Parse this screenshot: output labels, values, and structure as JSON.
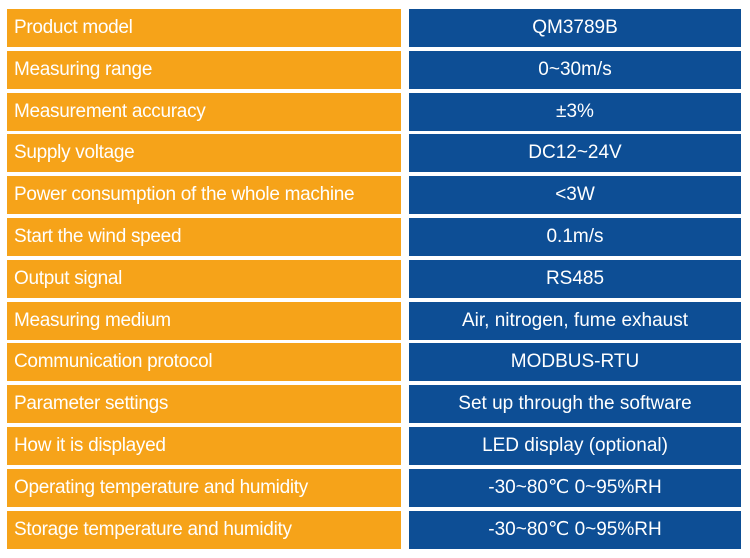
{
  "spec_table": {
    "rows": [
      {
        "label": "Product model",
        "value": "QM3789B"
      },
      {
        "label": "Measuring range",
        "value": "0~30m/s"
      },
      {
        "label": "Measurement accuracy",
        "value": "±3%"
      },
      {
        "label": "Supply voltage",
        "value": "DC12~24V"
      },
      {
        "label": "Power consumption of the whole machine",
        "value": "<3W"
      },
      {
        "label": "Start the wind speed",
        "value": "0.1m/s"
      },
      {
        "label": "Output signal",
        "value": "RS485"
      },
      {
        "label": "Measuring medium",
        "value": "Air, nitrogen, fume exhaust"
      },
      {
        "label": "Communication protocol",
        "value": "MODBUS-RTU"
      },
      {
        "label": "Parameter settings",
        "value": "Set up through the software"
      },
      {
        "label": "How it is displayed",
        "value": "LED display (optional)"
      },
      {
        "label": "Operating temperature and humidity",
        "value": "-30~80℃  0~95%RH"
      },
      {
        "label": "Storage temperature and humidity",
        "value": "-30~80℃  0~95%RH"
      }
    ],
    "colors": {
      "label_bg": "#f6a319",
      "value_bg": "#0d4e95",
      "text": "#ffffff"
    }
  }
}
